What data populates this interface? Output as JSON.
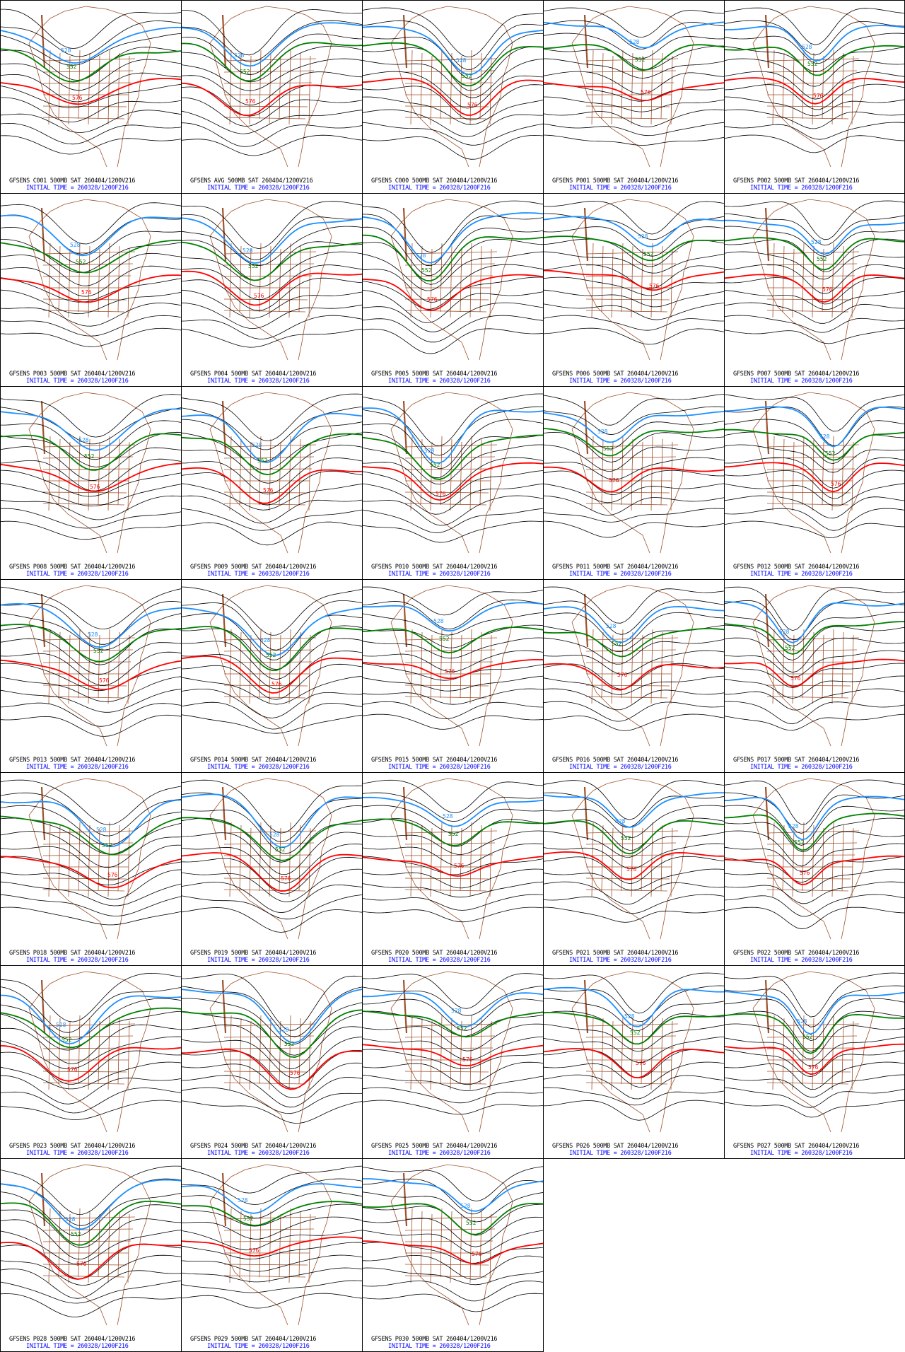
{
  "colors": {
    "background": "#ffffff",
    "border": "#000000",
    "contour_black": "#000000",
    "contour_blue": "#1e90ff",
    "contour_green": "#008000",
    "contour_red": "#ff0000",
    "map_lines": "#a0522d",
    "caption_top": "#000000",
    "caption_bottom": "#0000ff"
  },
  "contour_labels": {
    "blue": "528",
    "green": "552",
    "red": "576"
  },
  "panels": [
    {
      "member": "GFSENS C001 500MB SAT 260404/1200V216",
      "init": "INITIAL TIME = 260328/1200F216"
    },
    {
      "member": "GFSENS AVG 500MB SAT 260404/1200V216",
      "init": "INITIAL TIME = 260328/1200F216"
    },
    {
      "member": "GFSENS C000 500MB SAT 260404/1200V216",
      "init": "INITIAL TIME = 260328/1200F216"
    },
    {
      "member": "GFSENS P001 500MB SAT 260404/1200V216",
      "init": "INITIAL TIME = 260328/1200F216"
    },
    {
      "member": "GFSENS P002 500MB SAT 260404/1200V216",
      "init": "INITIAL TIME = 260328/1200F216"
    },
    {
      "member": "GFSENS P003 500MB SAT 260404/1200V216",
      "init": "INITIAL TIME = 260328/1200F216"
    },
    {
      "member": "GFSENS P004 500MB SAT 260404/1200V216",
      "init": "INITIAL TIME = 260328/1200F216"
    },
    {
      "member": "GFSENS P005 500MB SAT 260404/1200V216",
      "init": "INITIAL TIME = 260328/1200F216"
    },
    {
      "member": "GFSENS P006 500MB SAT 260404/1200V216",
      "init": "INITIAL TIME = 260328/1200F216"
    },
    {
      "member": "GFSENS P007 500MB SAT 260404/1200V216",
      "init": "INITIAL TIME = 260328/1200F216"
    },
    {
      "member": "GFSENS P008 500MB SAT 260404/1200V216",
      "init": "INITIAL TIME = 260328/1200F216"
    },
    {
      "member": "GFSENS P009 500MB SAT 260404/1200V216",
      "init": "INITIAL TIME = 260328/1200F216"
    },
    {
      "member": "GFSENS P010 500MB SAT 260404/1200V216",
      "init": "INITIAL TIME = 260328/1200F216"
    },
    {
      "member": "GFSENS P011 500MB SAT 260404/1200V216",
      "init": "INITIAL TIME = 260328/1200F216"
    },
    {
      "member": "GFSENS P012 500MB SAT 260404/1200V216",
      "init": "INITIAL TIME = 260328/1200F216"
    },
    {
      "member": "GFSENS P013 500MB SAT 260404/1200V216",
      "init": "INITIAL TIME = 260328/1200F216"
    },
    {
      "member": "GFSENS P014 500MB SAT 260404/1200V216",
      "init": "INITIAL TIME = 260328/1200F216"
    },
    {
      "member": "GFSENS P015 500MB SAT 260404/1200V216",
      "init": "INITIAL TIME = 260328/1200F216"
    },
    {
      "member": "GFSENS P016 500MB SAT 260404/1200V216",
      "init": "INITIAL TIME = 260328/1200F216"
    },
    {
      "member": "GFSENS P017 500MB SAT 260404/1200V216",
      "init": "INITIAL TIME = 260328/1200F216"
    },
    {
      "member": "GFSENS P018 500MB SAT 260404/1200V216",
      "init": "INITIAL TIME = 260328/1200F216"
    },
    {
      "member": "GFSENS P019 500MB SAT 260404/1200V216",
      "init": "INITIAL TIME = 260328/1200F216"
    },
    {
      "member": "GFSENS P020 500MB SAT 260404/1200V216",
      "init": "INITIAL TIME = 260328/1200F216"
    },
    {
      "member": "GFSENS P021 500MB SAT 260404/1200V216",
      "init": "INITIAL TIME = 260328/1200F216"
    },
    {
      "member": "GFSENS P022 500MB SAT 260404/1200V216",
      "init": "INITIAL TIME = 260328/1200F216"
    },
    {
      "member": "GFSENS P023 500MB SAT 260404/1200V216",
      "init": "INITIAL TIME = 260328/1200F216"
    },
    {
      "member": "GFSENS P024 500MB SAT 260404/1200V216",
      "init": "INITIAL TIME = 260328/1200F216"
    },
    {
      "member": "GFSENS P025 500MB SAT 260404/1200V216",
      "init": "INITIAL TIME = 260328/1200F216"
    },
    {
      "member": "GFSENS P026 500MB SAT 260404/1200V216",
      "init": "INITIAL TIME = 260328/1200F216"
    },
    {
      "member": "GFSENS P027 500MB SAT 260404/1200V216",
      "init": "INITIAL TIME = 260328/1200F216"
    },
    {
      "member": "GFSENS P028 500MB SAT 260404/1200V216",
      "init": "INITIAL TIME = 260328/1200F216"
    },
    {
      "member": "GFSENS P029 500MB SAT 260404/1200V216",
      "init": "INITIAL TIME = 260328/1200F216"
    },
    {
      "member": "GFSENS P030 500MB SAT 260404/1200V216",
      "init": "INITIAL TIME = 260328/1200F216"
    }
  ]
}
